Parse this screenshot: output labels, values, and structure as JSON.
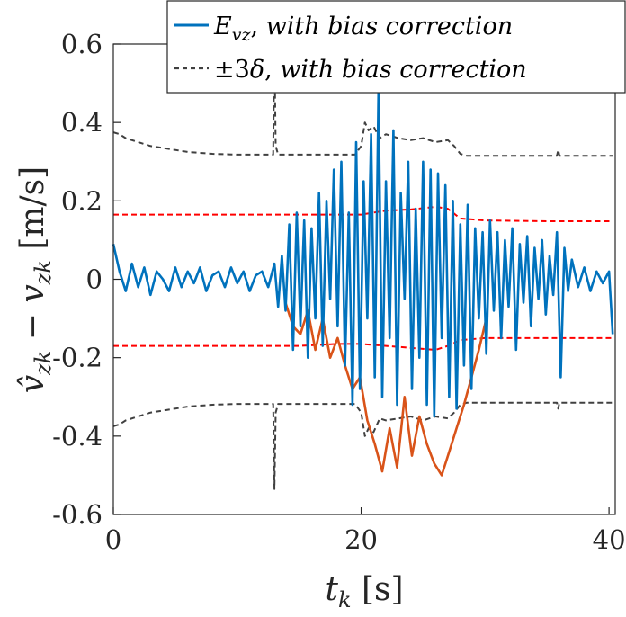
{
  "chart_data": {
    "type": "line",
    "xlabel": "t_k [s]",
    "ylabel": "v̂_zk − v_zk [m/s]",
    "xlim": [
      0,
      40.5
    ],
    "ylim": [
      -0.6,
      0.6
    ],
    "xticks": [
      0,
      20,
      40
    ],
    "xtick_labels": [
      "0",
      "20",
      "40"
    ],
    "yticks": [
      -0.6,
      -0.4,
      -0.2,
      0,
      0.2,
      0.4,
      0.6
    ],
    "ytick_labels": [
      "-0.6",
      "-0.4",
      "-0.2",
      "0",
      "0.2",
      "0.4",
      "0.6"
    ],
    "grid": false,
    "legend_position": "top-right",
    "legend": [
      {
        "label": "E_vz, with bias correction",
        "style": "solid",
        "color": "#0072BD"
      },
      {
        "label": "±3δ, with bias correction",
        "style": "dashed",
        "color": "#404040"
      }
    ],
    "series": [
      {
        "name": "E_vz, with bias correction",
        "color": "#0072BD",
        "style": "solid",
        "x": [
          0,
          0.5,
          1,
          1.5,
          2,
          2.5,
          3,
          3.5,
          4,
          4.5,
          5,
          5.5,
          6,
          6.5,
          7,
          7.5,
          8,
          8.5,
          9,
          9.5,
          10,
          10.5,
          11,
          11.5,
          12,
          12.5,
          13,
          13.3,
          13.6,
          13.9,
          14.2,
          14.5,
          14.8,
          15.1,
          15.4,
          15.7,
          16,
          16.3,
          16.6,
          16.9,
          17.2,
          17.5,
          17.8,
          18.1,
          18.4,
          18.7,
          19,
          19.3,
          19.6,
          19.9,
          20.2,
          20.5,
          20.8,
          21.1,
          21.4,
          21.7,
          22,
          22.3,
          22.6,
          22.9,
          23.2,
          23.5,
          23.8,
          24.1,
          24.4,
          24.7,
          25,
          25.3,
          25.6,
          25.9,
          26.2,
          26.5,
          26.8,
          27.1,
          27.4,
          27.7,
          28,
          28.3,
          28.6,
          28.9,
          29.2,
          29.5,
          29.8,
          30.1,
          30.4,
          30.7,
          31,
          31.3,
          31.6,
          31.9,
          32.2,
          32.5,
          32.8,
          33.1,
          33.4,
          33.7,
          34,
          34.3,
          34.6,
          34.9,
          35.2,
          35.5,
          35.8,
          36.1,
          36.4,
          36.7,
          37,
          37.5,
          38,
          38.5,
          39,
          39.5,
          40,
          40.3
        ],
        "y": [
          0.09,
          0.02,
          -0.03,
          0.04,
          -0.02,
          0.03,
          -0.04,
          0.02,
          0.0,
          -0.03,
          0.03,
          -0.02,
          0.02,
          -0.01,
          0.03,
          -0.03,
          0.01,
          0.02,
          -0.02,
          0.03,
          -0.01,
          0.02,
          -0.03,
          0.01,
          0.02,
          -0.02,
          0.04,
          -0.07,
          0.06,
          -0.08,
          0.14,
          -0.18,
          0.17,
          -0.12,
          0.15,
          -0.2,
          0.13,
          -0.1,
          0.22,
          -0.17,
          0.2,
          -0.05,
          0.28,
          -0.12,
          0.3,
          -0.22,
          0.17,
          -0.32,
          0.35,
          -0.28,
          0.25,
          -0.1,
          0.37,
          -0.25,
          0.48,
          -0.3,
          0.25,
          -0.15,
          0.38,
          -0.32,
          0.22,
          -0.05,
          0.3,
          -0.28,
          0.18,
          -0.2,
          0.3,
          -0.32,
          0.28,
          -0.35,
          0.27,
          -0.15,
          0.24,
          -0.3,
          0.2,
          -0.33,
          0.14,
          -0.22,
          0.19,
          -0.28,
          0.13,
          -0.1,
          0.12,
          -0.19,
          0.15,
          -0.08,
          0.12,
          -0.15,
          0.1,
          -0.07,
          0.13,
          -0.18,
          0.09,
          -0.06,
          0.11,
          -0.12,
          0.08,
          -0.05,
          0.1,
          -0.09,
          0.06,
          -0.04,
          0.12,
          -0.25,
          0.08,
          -0.03,
          0.05,
          -0.02,
          0.03,
          -0.03,
          0.02,
          -0.01,
          0.02,
          -0.14
        ]
      },
      {
        "name": "",
        "color": "#D95319",
        "style": "solid",
        "x": [
          13.9,
          14.5,
          15.1,
          15.7,
          16.3,
          16.9,
          17.5,
          18.1,
          18.7,
          19.3,
          19.9,
          20.5,
          21.1,
          21.7,
          22.3,
          22.9,
          23.5,
          24.1,
          24.7,
          25.3,
          25.9,
          26.5,
          27.1,
          27.7,
          28.3,
          28.9,
          29.5,
          30.1
        ],
        "y": [
          -0.06,
          -0.12,
          -0.14,
          -0.08,
          -0.18,
          -0.1,
          -0.2,
          -0.15,
          -0.22,
          -0.28,
          -0.25,
          -0.36,
          -0.42,
          -0.49,
          -0.38,
          -0.48,
          -0.3,
          -0.45,
          -0.35,
          -0.42,
          -0.47,
          -0.5,
          -0.44,
          -0.38,
          -0.32,
          -0.25,
          -0.18,
          -0.1
        ]
      },
      {
        "name": "",
        "color": "#FF0000",
        "style": "dashed",
        "x": [
          0,
          5,
          10,
          13,
          15,
          18,
          20,
          22,
          24,
          26,
          27,
          28,
          30,
          35,
          40.3
        ],
        "y": [
          0.165,
          0.165,
          0.165,
          0.165,
          0.165,
          0.165,
          0.165,
          0.175,
          0.178,
          0.185,
          0.18,
          0.155,
          0.15,
          0.148,
          0.148
        ]
      },
      {
        "name": "",
        "color": "#FF0000",
        "style": "dashed",
        "x": [
          0,
          5,
          10,
          13,
          15,
          18,
          20,
          22,
          24,
          26,
          27,
          28,
          30,
          35,
          40.3
        ],
        "y": [
          -0.17,
          -0.17,
          -0.17,
          -0.17,
          -0.17,
          -0.165,
          -0.165,
          -0.17,
          -0.175,
          -0.18,
          -0.17,
          -0.155,
          -0.15,
          -0.15,
          -0.15
        ]
      },
      {
        "name": "±3δ, with bias correction",
        "color": "#404040",
        "style": "dashed",
        "x": [
          0,
          0.5,
          1,
          2,
          3,
          4,
          6,
          8,
          10,
          12,
          12.9,
          13.0,
          13.1,
          13.3,
          14,
          16,
          18,
          19.5,
          20,
          20.3,
          20.6,
          21,
          21.5,
          22,
          23,
          24,
          25,
          26,
          27,
          27.5,
          28,
          28.5,
          30,
          32,
          35,
          35.8,
          35.9,
          36,
          38,
          40.3
        ],
        "y": [
          0.375,
          0.37,
          0.36,
          0.35,
          0.34,
          0.335,
          0.325,
          0.32,
          0.318,
          0.318,
          0.318,
          0.59,
          0.34,
          0.318,
          0.318,
          0.318,
          0.318,
          0.318,
          0.34,
          0.4,
          0.38,
          0.39,
          0.36,
          0.37,
          0.36,
          0.355,
          0.36,
          0.35,
          0.355,
          0.34,
          0.32,
          0.315,
          0.315,
          0.315,
          0.315,
          0.315,
          0.33,
          0.315,
          0.315,
          0.315
        ]
      },
      {
        "name": "",
        "color": "#404040",
        "style": "dashed",
        "x": [
          0,
          0.5,
          1,
          2,
          3,
          4,
          6,
          8,
          10,
          12,
          12.9,
          13.0,
          13.1,
          13.3,
          14,
          16,
          18,
          19.5,
          20,
          20.3,
          20.6,
          21,
          21.5,
          22,
          23,
          24,
          25,
          26,
          27,
          27.5,
          28,
          28.5,
          30,
          32,
          35,
          35.8,
          35.9,
          36,
          38,
          40.3
        ],
        "y": [
          -0.375,
          -0.37,
          -0.36,
          -0.35,
          -0.34,
          -0.335,
          -0.325,
          -0.32,
          -0.318,
          -0.318,
          -0.318,
          -0.535,
          -0.34,
          -0.318,
          -0.318,
          -0.318,
          -0.318,
          -0.318,
          -0.34,
          -0.4,
          -0.38,
          -0.39,
          -0.355,
          -0.36,
          -0.355,
          -0.35,
          -0.36,
          -0.35,
          -0.355,
          -0.34,
          -0.32,
          -0.315,
          -0.315,
          -0.315,
          -0.315,
          -0.315,
          -0.33,
          -0.315,
          -0.315,
          -0.315
        ]
      }
    ]
  }
}
